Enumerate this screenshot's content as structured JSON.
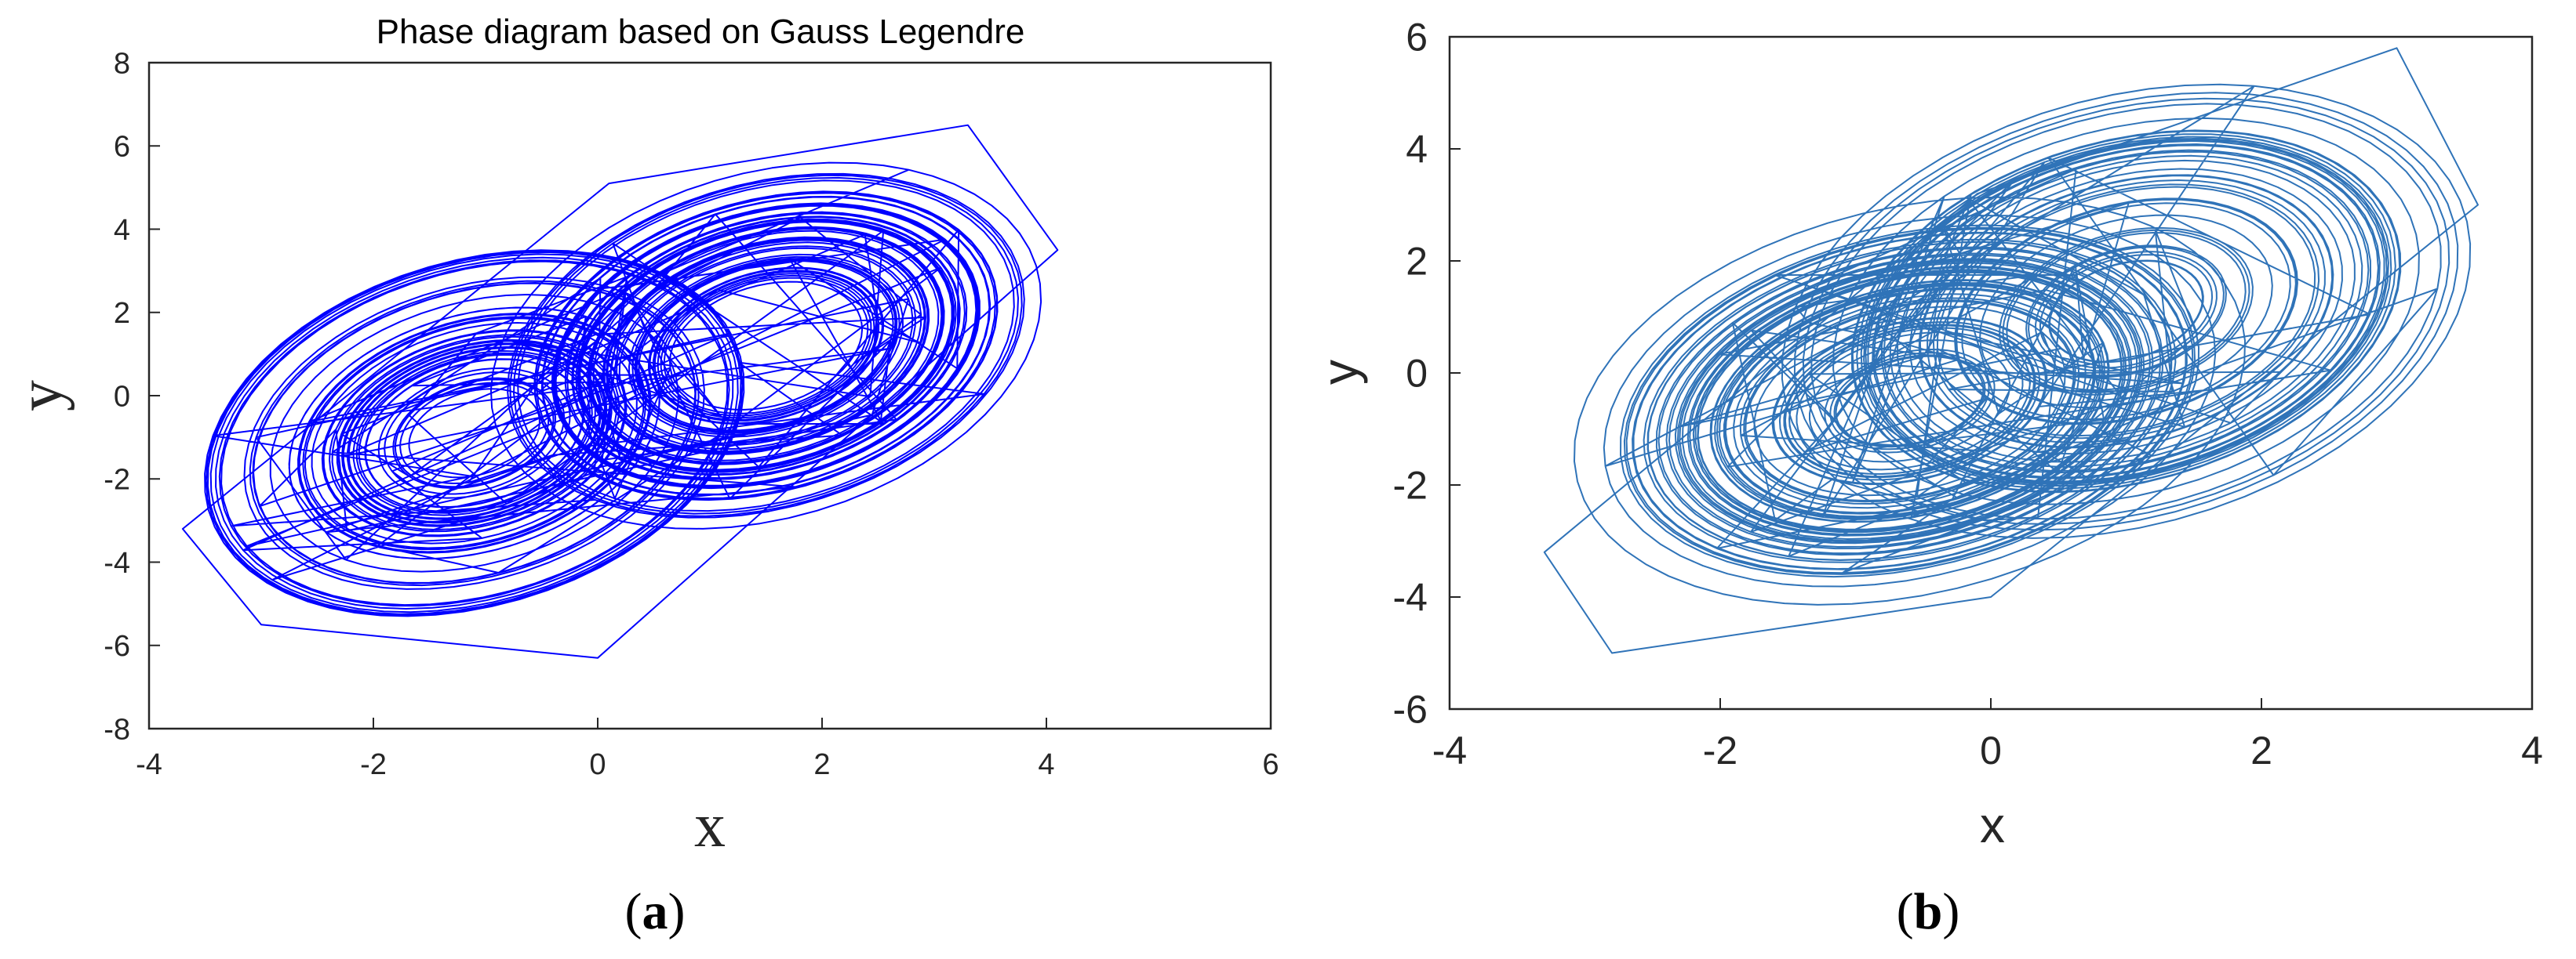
{
  "panels": [
    {
      "caption_letter": "a",
      "chart_data": {
        "type": "line",
        "title": "Phase diagram based on Gauss Legendre",
        "xlabel": "x",
        "ylabel": "y",
        "xlim": [
          -4,
          6
        ],
        "ylim": [
          -8,
          8
        ],
        "xticks": [
          "-4",
          "-2",
          "0",
          "2",
          "4",
          "6"
        ],
        "yticks": [
          "-8",
          "-6",
          "-4",
          "-2",
          "0",
          "2",
          "4",
          "6",
          "8"
        ],
        "grid": false,
        "color": "#0000ff",
        "series": [
          {
            "description": "double-scroll chaotic attractor trajectory",
            "x_range": [
              -3.7,
              4.1
            ],
            "y_range": [
              -6.3,
              6.5
            ],
            "left_lobe_center": [
              -1.1,
              -0.9
            ],
            "right_lobe_center": [
              1.5,
              1.2
            ],
            "outer_loop_points": [
              [
                -3.0,
                -5.5
              ],
              [
                -3.7,
                -3.2
              ],
              [
                0.1,
                5.1
              ],
              [
                3.3,
                6.5
              ],
              [
                4.1,
                3.5
              ],
              [
                0.0,
                -6.3
              ]
            ]
          }
        ]
      }
    },
    {
      "caption_letter": "b",
      "chart_data": {
        "type": "line",
        "title": "",
        "xlabel": "x",
        "ylabel": "y",
        "xlim": [
          -4,
          4
        ],
        "ylim": [
          -6,
          6
        ],
        "xticks": [
          "-4",
          "-2",
          "0",
          "2",
          "4"
        ],
        "yticks": [
          "-6",
          "-4",
          "-2",
          "0",
          "2",
          "4",
          "6"
        ],
        "grid": false,
        "color": "#2f73b8",
        "series": [
          {
            "description": "double-scroll chaotic attractor trajectory",
            "x_range": [
              -3.3,
              3.6
            ],
            "y_range": [
              -5.0,
              5.8
            ],
            "left_lobe_center": [
              -0.6,
              -0.5
            ],
            "right_lobe_center": [
              1.0,
              1.1
            ],
            "outer_loop_points": [
              [
                -2.8,
                -5.0
              ],
              [
                -3.3,
                -3.2
              ],
              [
                -0.1,
                3.2
              ],
              [
                3.0,
                5.8
              ],
              [
                3.6,
                3.0
              ],
              [
                0.0,
                -4.0
              ]
            ]
          }
        ]
      }
    }
  ]
}
